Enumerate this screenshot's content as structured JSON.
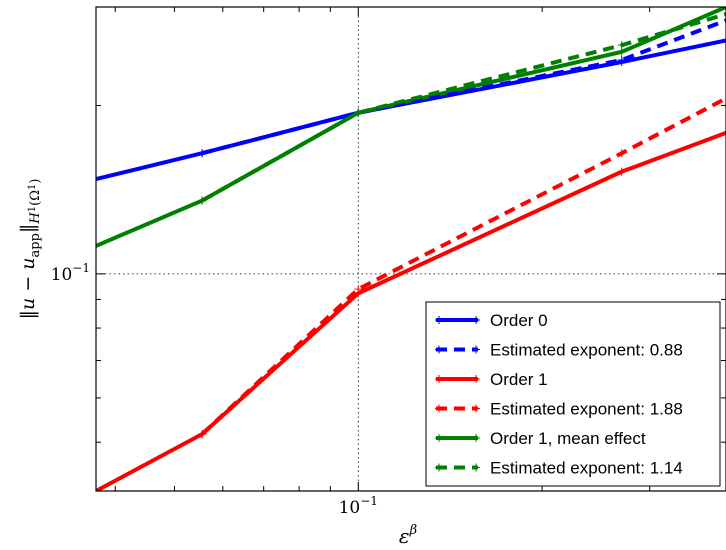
{
  "chart_data": {
    "type": "line",
    "x_scale": "log",
    "y_scale": "log",
    "xlabel": "ε^β",
    "ylabel": "||u − u_app||_{H¹(Ω¹)}",
    "x_tick_labels": [
      {
        "value": 0.1,
        "label": "10",
        "exp": "−1"
      }
    ],
    "y_tick_labels": [
      {
        "value": 0.1,
        "label": "10",
        "exp": "−1"
      }
    ],
    "xlim": [
      0.0372,
      0.4
    ],
    "ylim": [
      0.0409,
      0.3
    ],
    "grid": {
      "x": [
        0.1
      ],
      "y": [
        0.1
      ],
      "style": "dotted"
    },
    "legend_position": "lower-right",
    "series": [
      {
        "name": "Order 0",
        "color": "#0000ff",
        "style": "solid",
        "x": [
          0.0372,
          0.0555,
          0.1,
          0.27,
          0.4
        ],
        "y": [
          0.1477,
          0.1643,
          0.1941,
          0.2392,
          0.2614
        ]
      },
      {
        "name": "Estimated exponent: 0.88",
        "color": "#0000ff",
        "style": "dashed",
        "x": [
          0.0555,
          0.1,
          0.27,
          0.4
        ],
        "y": [
          0.1643,
          0.1941,
          0.2412,
          0.2838
        ]
      },
      {
        "name": "Order 1",
        "color": "#ff0000",
        "style": "solid",
        "x": [
          0.0372,
          0.0555,
          0.1,
          0.27,
          0.4
        ],
        "y": [
          0.0409,
          0.0517,
          0.0923,
          0.1523,
          0.1787
        ]
      },
      {
        "name": "Estimated exponent: 1.88",
        "color": "#ff0000",
        "style": "dashed",
        "x": [
          0.0555,
          0.1,
          0.27,
          0.4
        ],
        "y": [
          0.0517,
          0.0939,
          0.1643,
          0.2059
        ]
      },
      {
        "name": "Order 1, mean effect",
        "color": "#008000",
        "style": "solid",
        "x": [
          0.0372,
          0.0555,
          0.1,
          0.27,
          0.4
        ],
        "y": [
          0.1122,
          0.1352,
          0.1941,
          0.2494,
          0.2999
        ]
      },
      {
        "name": "Estimated exponent: 1.14",
        "color": "#008000",
        "style": "dashed",
        "x": [
          0.0555,
          0.1,
          0.27,
          0.4
        ],
        "y": [
          0.1352,
          0.1941,
          0.2564,
          0.2913
        ]
      }
    ]
  }
}
